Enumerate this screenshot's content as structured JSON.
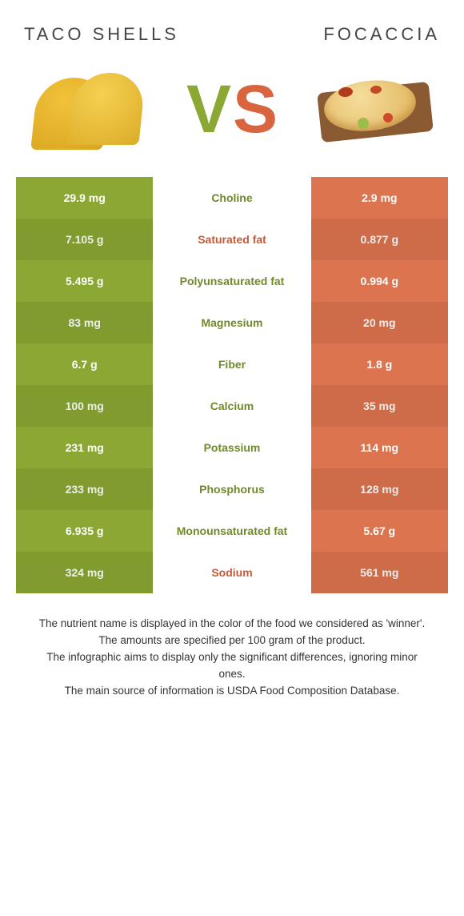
{
  "colors": {
    "left_bg": "#8aa833",
    "right_bg": "#dd7450",
    "mid_left_text": "#6f8a27",
    "mid_right_text": "#c75a37",
    "title_text": "#444444",
    "caption_text": "#333333",
    "vs_v": "#8aa833",
    "vs_s": "#d96540"
  },
  "titles": {
    "left": "Taco shells",
    "right": "Focaccia"
  },
  "vs": {
    "v": "V",
    "s": "S"
  },
  "rows": [
    {
      "left": "29.9 mg",
      "label": "Choline",
      "right": "2.9 mg",
      "winner": "left"
    },
    {
      "left": "7.105 g",
      "label": "Saturated fat",
      "right": "0.877 g",
      "winner": "right"
    },
    {
      "left": "5.495 g",
      "label": "Polyunsaturated fat",
      "right": "0.994 g",
      "winner": "left"
    },
    {
      "left": "83 mg",
      "label": "Magnesium",
      "right": "20 mg",
      "winner": "left"
    },
    {
      "left": "6.7 g",
      "label": "Fiber",
      "right": "1.8 g",
      "winner": "left"
    },
    {
      "left": "100 mg",
      "label": "Calcium",
      "right": "35 mg",
      "winner": "left"
    },
    {
      "left": "231 mg",
      "label": "Potassium",
      "right": "114 mg",
      "winner": "left"
    },
    {
      "left": "233 mg",
      "label": "Phosphorus",
      "right": "128 mg",
      "winner": "left"
    },
    {
      "left": "6.935 g",
      "label": "Monounsaturated fat",
      "right": "5.67 g",
      "winner": "left"
    },
    {
      "left": "324 mg",
      "label": "Sodium",
      "right": "561 mg",
      "winner": "right"
    }
  ],
  "caption": [
    "The nutrient name is displayed in the color of the food we considered as 'winner'.",
    "The amounts are specified per 100 gram of the product.",
    "The infographic aims to display only the significant differences, ignoring minor ones.",
    "The main source of information is USDA Food Composition Database."
  ]
}
